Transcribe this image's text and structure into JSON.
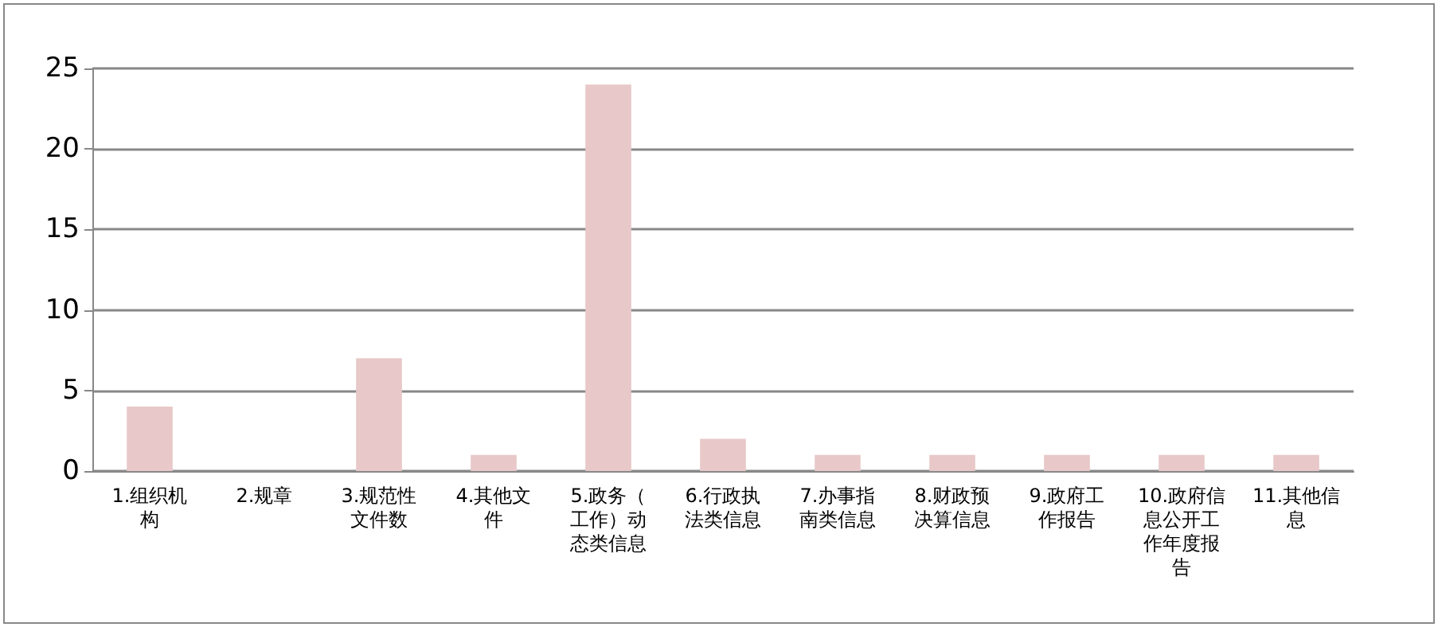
{
  "chart_data": {
    "type": "bar",
    "categories": [
      "1.组织机构",
      "2.规章",
      "3.规范性文件数",
      "4.其他文件",
      "5.政务（工作）动态类信息",
      "6.行政执法类信息",
      "7.办事指南类信息",
      "8.财政预决算信息",
      "9.政府工作报告",
      "10.政府信息公开工作年度报告",
      "11.其他信息"
    ],
    "values": [
      4,
      0,
      7,
      1,
      24,
      2,
      1,
      1,
      1,
      1,
      1
    ],
    "color": "#e8c8c8",
    "ylim": [
      0,
      25
    ],
    "yticks": [
      0,
      5,
      10,
      15,
      20,
      25
    ],
    "grid": "y"
  }
}
